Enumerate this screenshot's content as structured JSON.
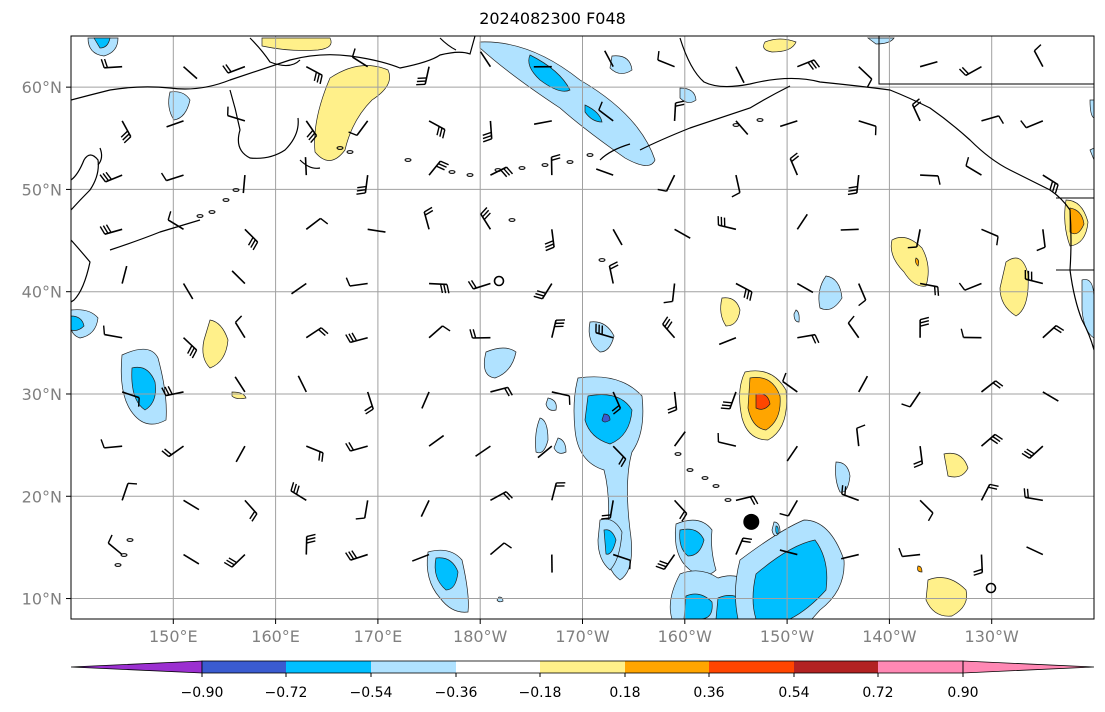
{
  "title": "2024082300 F048",
  "map": {
    "projection": "PlateCarree",
    "extent": {
      "lon_min": 140,
      "lon_max": 240,
      "lat_min": 8,
      "lat_max": 65
    },
    "lon_ticks": [
      {
        "lon": 150,
        "label": "150°E"
      },
      {
        "lon": 160,
        "label": "160°E"
      },
      {
        "lon": 170,
        "label": "170°E"
      },
      {
        "lon": 180,
        "label": "180°W"
      },
      {
        "lon": 190,
        "label": "170°W"
      },
      {
        "lon": 200,
        "label": "160°W"
      },
      {
        "lon": 210,
        "label": "150°W"
      },
      {
        "lon": 220,
        "label": "140°W"
      },
      {
        "lon": 230,
        "label": "130°W"
      }
    ],
    "lat_ticks": [
      {
        "lat": 60,
        "label": "60°N"
      },
      {
        "lat": 50,
        "label": "50°N"
      },
      {
        "lat": 40,
        "label": "40°N"
      },
      {
        "lat": 30,
        "label": "30°N"
      },
      {
        "lat": 20,
        "label": "20°N"
      },
      {
        "lat": 10,
        "label": "10°N"
      }
    ],
    "gridlines": true,
    "storm_marker": {
      "lon": 206.5,
      "lat": 17.5
    }
  },
  "colorbar": {
    "colors": [
      "#9b30d0",
      "#00008b",
      "#3a5bd0",
      "#00bfff",
      "#b0e2ff",
      "#ffffff",
      "#fff08a",
      "#ffa500",
      "#ff4500",
      "#b22222",
      "#ff88b4"
    ],
    "ticks": [
      "-0.90",
      "-0.72",
      "-0.54",
      "-0.36",
      "-0.18",
      "0.18",
      "0.36",
      "0.54",
      "0.72",
      "0.90"
    ]
  },
  "colors": {
    "land_outline": "#000000",
    "grid": "#a0a0a0",
    "barb": "#000000"
  }
}
